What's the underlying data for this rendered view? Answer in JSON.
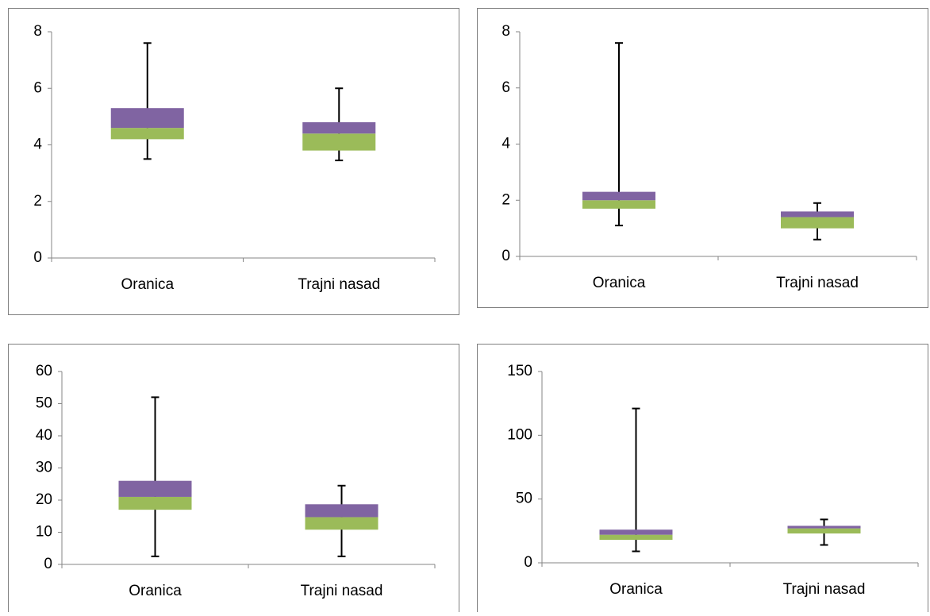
{
  "chart_data": [
    {
      "type": "box",
      "categories": [
        "Oranica",
        "Trajni nasad"
      ],
      "min": [
        3.5,
        3.45
      ],
      "q1": [
        4.2,
        3.8
      ],
      "median": [
        4.6,
        4.4
      ],
      "q3": [
        5.3,
        4.8
      ],
      "max": [
        7.6,
        6.0
      ],
      "lower_color": "#9bbb59",
      "upper_color": "#8064a2",
      "ylim": [
        0,
        8
      ],
      "yticks": [
        0,
        2,
        4,
        6,
        8
      ]
    },
    {
      "type": "box",
      "categories": [
        "Oranica",
        "Trajni nasad"
      ],
      "min": [
        1.1,
        0.6
      ],
      "q1": [
        1.7,
        1.0
      ],
      "median": [
        2.0,
        1.4
      ],
      "q3": [
        2.3,
        1.6
      ],
      "max": [
        7.6,
        1.9
      ],
      "lower_color": "#9bbb59",
      "upper_color": "#8064a2",
      "ylim": [
        0,
        8
      ],
      "yticks": [
        0,
        2,
        4,
        6,
        8
      ]
    },
    {
      "type": "box",
      "categories": [
        "Oranica",
        "Trajni nasad"
      ],
      "min": [
        2.5,
        2.5
      ],
      "q1": [
        17,
        10.8
      ],
      "median": [
        21,
        14.7
      ],
      "q3": [
        26,
        18.7
      ],
      "max": [
        52,
        24.5
      ],
      "lower_color": "#9bbb59",
      "upper_color": "#8064a2",
      "ylim": [
        0,
        60
      ],
      "yticks": [
        0,
        10,
        20,
        30,
        40,
        50,
        60
      ]
    },
    {
      "type": "box",
      "categories": [
        "Oranica",
        "Trajni nasad"
      ],
      "min": [
        9,
        14
      ],
      "q1": [
        18,
        23
      ],
      "median": [
        22,
        27
      ],
      "q3": [
        26,
        29
      ],
      "max": [
        121,
        34
      ],
      "lower_color": "#9bbb59",
      "upper_color": "#8064a2",
      "ylim": [
        0,
        150
      ],
      "yticks": [
        0,
        50,
        100,
        150
      ]
    }
  ]
}
